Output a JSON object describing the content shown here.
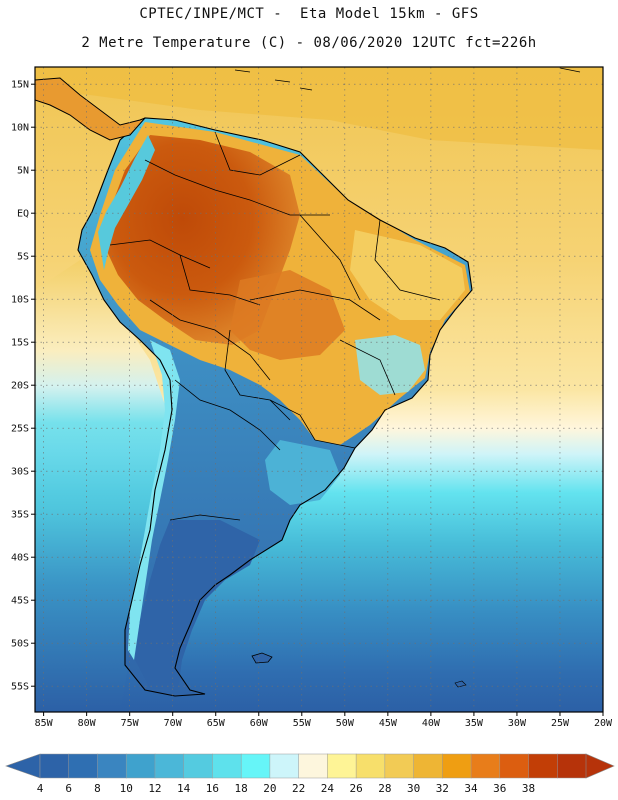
{
  "header": {
    "line1": "CPTEC/INPE/MCT -  Eta Model 15km - GFS",
    "line2": "2 Metre Temperature (C) - 08/06/2020 12UTC fct=226h"
  },
  "map": {
    "lat_range": [
      -58,
      17
    ],
    "lon_range": [
      -86,
      -20
    ],
    "lat_ticks": [
      {
        "value": 15,
        "label": "15N"
      },
      {
        "value": 10,
        "label": "10N"
      },
      {
        "value": 5,
        "label": "5N"
      },
      {
        "value": 0,
        "label": "EQ"
      },
      {
        "value": -5,
        "label": "5S"
      },
      {
        "value": -10,
        "label": "10S"
      },
      {
        "value": -15,
        "label": "15S"
      },
      {
        "value": -20,
        "label": "20S"
      },
      {
        "value": -25,
        "label": "25S"
      },
      {
        "value": -30,
        "label": "30S"
      },
      {
        "value": -35,
        "label": "35S"
      },
      {
        "value": -40,
        "label": "40S"
      },
      {
        "value": -45,
        "label": "45S"
      },
      {
        "value": -50,
        "label": "50S"
      },
      {
        "value": -55,
        "label": "55S"
      }
    ],
    "lon_ticks": [
      {
        "value": -85,
        "label": "85W"
      },
      {
        "value": -80,
        "label": "80W"
      },
      {
        "value": -75,
        "label": "75W"
      },
      {
        "value": -70,
        "label": "70W"
      },
      {
        "value": -65,
        "label": "65W"
      },
      {
        "value": -60,
        "label": "60W"
      },
      {
        "value": -55,
        "label": "55W"
      },
      {
        "value": -50,
        "label": "50W"
      },
      {
        "value": -45,
        "label": "45W"
      },
      {
        "value": -40,
        "label": "40W"
      },
      {
        "value": -35,
        "label": "35W"
      },
      {
        "value": -30,
        "label": "30W"
      },
      {
        "value": -25,
        "label": "25W"
      },
      {
        "value": -20,
        "label": "20W"
      }
    ]
  },
  "colorbar": {
    "labels": [
      "4",
      "6",
      "8",
      "10",
      "12",
      "14",
      "16",
      "18",
      "20",
      "22",
      "24",
      "26",
      "28",
      "30",
      "32",
      "34",
      "36",
      "38"
    ],
    "colors": [
      "#2d63a8",
      "#2f6fb2",
      "#3a85c0",
      "#3fa2cd",
      "#4bb7d8",
      "#54cbe0",
      "#5ee1ec",
      "#66f5f8",
      "#cdf5fa",
      "#fdf6dd",
      "#fef496",
      "#f7df6b",
      "#f2cb55",
      "#eeb534",
      "#ef9e12",
      "#e87d1a",
      "#dc5e10",
      "#c23e06",
      "#b6330a"
    ]
  },
  "colors": {
    "ocean_warm": "#f3cb62",
    "ocean_cool": "#4ac6dd",
    "amazon_hot": "#c8530d",
    "land_warm": "#e58a2c",
    "patagonia": "#3a76b8",
    "border": "#000000"
  }
}
